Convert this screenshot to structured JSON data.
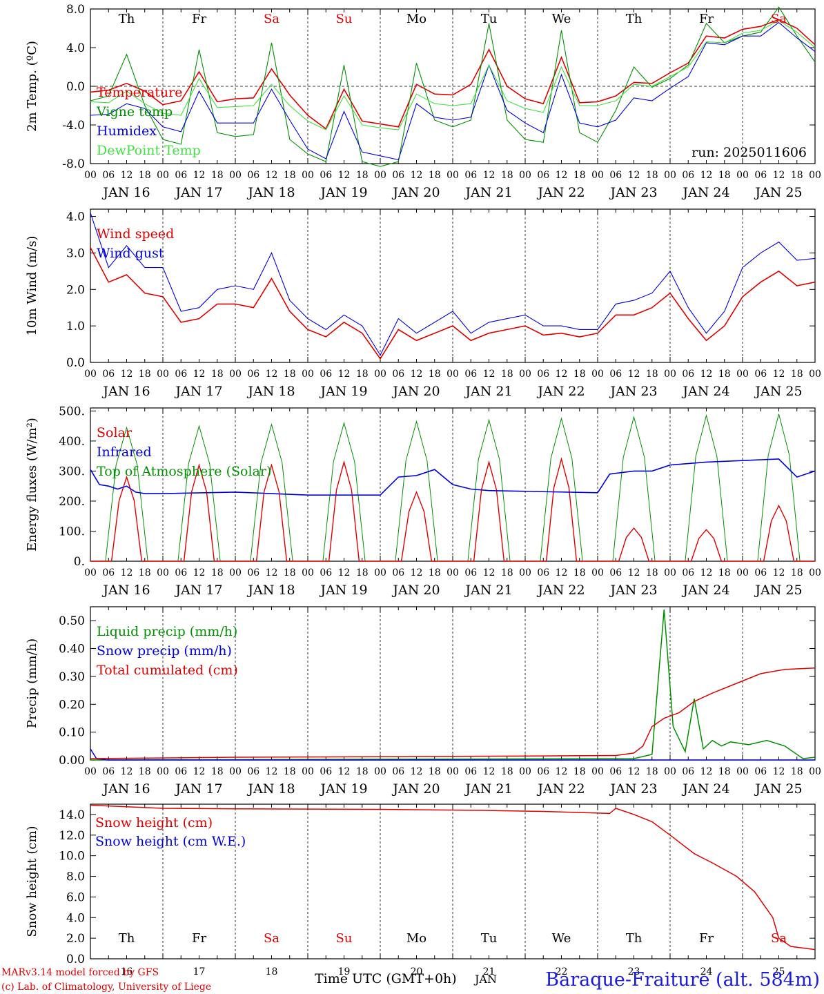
{
  "chart_data": [
    {
      "type": "line",
      "ylabel": "2m Temp. (ºC)",
      "ylim": [
        -8,
        8
      ],
      "yticks": [
        "-8.0",
        "-4.0",
        "0.0",
        "4.0",
        "8.0"
      ],
      "zero_line": true,
      "run_label": "run: 2025011606",
      "day_names": [
        "Th",
        "Fr",
        "Sa",
        "Su",
        "Mo",
        "Tu",
        "We",
        "Th",
        "Fr",
        "Sa"
      ],
      "x_hours": [
        0,
        6,
        12,
        18,
        24,
        30,
        36,
        42,
        48,
        54,
        60,
        66,
        72,
        78,
        84,
        90,
        96,
        102,
        108,
        114,
        120,
        126,
        132,
        138,
        144,
        150,
        156,
        162,
        168,
        174,
        180,
        186,
        192,
        198,
        204,
        210,
        216,
        222,
        228,
        234,
        240
      ],
      "series": [
        {
          "name": "Temperature",
          "color": "#e00000",
          "values": [
            -0.6,
            -0.4,
            0.3,
            -0.5,
            -1.9,
            -1.5,
            1.5,
            -1.6,
            -1.3,
            -1.2,
            1.8,
            -0.9,
            -3.0,
            -4.4,
            -0.3,
            -3.6,
            -3.9,
            -4.2,
            0.2,
            -0.8,
            -0.9,
            0.2,
            3.8,
            0.0,
            -1.3,
            -1.8,
            3.0,
            -1.7,
            -1.6,
            -1.0,
            0.4,
            0.3,
            1.4,
            2.4,
            5.2,
            5.0,
            5.9,
            6.2,
            6.9,
            6.0,
            4.3
          ]
        },
        {
          "name": "Vigne temp",
          "color": "#009000",
          "values": [
            -1.5,
            -1.0,
            3.3,
            -2.0,
            -5.5,
            -6.0,
            3.8,
            -4.8,
            -5.2,
            -5.0,
            4.5,
            -5.5,
            -7.0,
            -7.8,
            2.2,
            -7.8,
            -8.5,
            -7.8,
            2.4,
            -3.5,
            -4.2,
            -3.5,
            6.5,
            -3.5,
            -5.5,
            -5.8,
            5.8,
            -4.8,
            -5.8,
            -2.5,
            2.0,
            -0.1,
            0.8,
            2.2,
            6.5,
            4.5,
            5.2,
            5.6,
            8.2,
            5.2,
            2.5
          ]
        },
        {
          "name": "Humidex",
          "color": "#0000e0",
          "values": [
            -3.0,
            -2.9,
            -1.8,
            -2.3,
            -4.2,
            -4.7,
            -0.5,
            -3.8,
            -3.8,
            -3.8,
            -0.3,
            -3.5,
            -6.5,
            -7.5,
            -2.6,
            -6.8,
            -7.2,
            -7.6,
            -1.8,
            -3.2,
            -3.5,
            -3.2,
            2.2,
            -2.5,
            -3.8,
            -4.8,
            1.2,
            -3.8,
            -4.2,
            -3.5,
            -1.2,
            -1.5,
            -0.2,
            1.0,
            4.5,
            4.3,
            5.2,
            5.2,
            6.6,
            5.0,
            3.6
          ]
        },
        {
          "name": "DewPoint Temp",
          "color": "#40e040",
          "values": [
            -1.6,
            -1.7,
            -0.5,
            -1.8,
            -2.8,
            -3.0,
            0.8,
            -2.2,
            -2.1,
            -2.0,
            0.2,
            -2.0,
            -3.6,
            -4.5,
            -1.0,
            -4.0,
            -4.3,
            -4.5,
            -0.8,
            -1.8,
            -2.0,
            -1.8,
            2.2,
            -1.5,
            -2.3,
            -2.7,
            2.0,
            -2.0,
            -2.0,
            -1.5,
            0.2,
            0.0,
            1.0,
            2.0,
            4.6,
            4.5,
            5.5,
            5.8,
            6.8,
            5.6,
            4.0
          ]
        }
      ]
    },
    {
      "type": "line",
      "ylabel": "10m Wind (m/s)",
      "ylim": [
        0,
        4.2
      ],
      "yticks": [
        "0.0",
        "1.0",
        "2.0",
        "3.0",
        "4.0"
      ],
      "x_hours": [
        0,
        6,
        12,
        18,
        24,
        30,
        36,
        42,
        48,
        54,
        60,
        66,
        72,
        78,
        84,
        90,
        96,
        102,
        108,
        114,
        120,
        126,
        132,
        138,
        144,
        150,
        156,
        162,
        168,
        174,
        180,
        186,
        192,
        198,
        204,
        210,
        216,
        222,
        228,
        234,
        240
      ],
      "series": [
        {
          "name": "Wind speed",
          "color": "#e00000",
          "values": [
            3.15,
            2.2,
            2.4,
            1.9,
            1.8,
            1.1,
            1.2,
            1.6,
            1.6,
            1.5,
            2.3,
            1.4,
            0.9,
            0.7,
            1.1,
            0.8,
            0.1,
            0.9,
            0.6,
            0.8,
            1.0,
            0.6,
            0.8,
            0.9,
            1.0,
            0.75,
            0.8,
            0.7,
            0.8,
            1.3,
            1.3,
            1.5,
            1.9,
            1.2,
            0.6,
            1.0,
            1.8,
            2.2,
            2.5,
            2.1,
            2.2
          ]
        },
        {
          "name": "Wind gust",
          "color": "#0000e0",
          "values": [
            4.1,
            2.6,
            3.2,
            2.6,
            2.6,
            1.4,
            1.5,
            2.0,
            2.1,
            2.0,
            3.0,
            1.7,
            1.2,
            0.9,
            1.3,
            1.0,
            0.2,
            1.2,
            0.8,
            1.1,
            1.4,
            0.8,
            1.1,
            1.2,
            1.3,
            1.0,
            1.0,
            0.9,
            0.9,
            1.6,
            1.7,
            1.9,
            2.5,
            1.5,
            0.8,
            1.4,
            2.6,
            3.0,
            3.3,
            2.8,
            2.85
          ]
        }
      ]
    },
    {
      "type": "line",
      "ylabel": "Energy fluxes (W/m²)",
      "ylim": [
        0,
        510
      ],
      "yticks": [
        "0.",
        "100.",
        "200.",
        "300.",
        "400.",
        "500."
      ],
      "solar_noon_peaks": {
        "solar": [
          280,
          320,
          320,
          330,
          230,
          330,
          340,
          110,
          105,
          185
        ],
        "top_of_atmosphere": [
          445,
          450,
          455,
          460,
          465,
          470,
          475,
          480,
          485,
          490
        ]
      },
      "infrared": {
        "x_hours": [
          0,
          3,
          6,
          9,
          12,
          15,
          18,
          24,
          48,
          72,
          96,
          102,
          108,
          114,
          120,
          126,
          132,
          168,
          172,
          180,
          186,
          192,
          204,
          216,
          228,
          234,
          240
        ],
        "values": [
          305,
          255,
          250,
          240,
          250,
          230,
          225,
          225,
          230,
          220,
          220,
          280,
          285,
          305,
          255,
          240,
          235,
          228,
          290,
          300,
          300,
          320,
          330,
          335,
          340,
          280,
          300
        ]
      },
      "series": [
        {
          "name": "Solar",
          "color": "#e00000"
        },
        {
          "name": "Infrared",
          "color": "#0000e0"
        },
        {
          "name": "Top of Atmosphere (Solar)",
          "color": "#009000"
        }
      ]
    },
    {
      "type": "line",
      "ylabel": "Precip (mm/h)",
      "ylim": [
        0,
        0.55
      ],
      "yticks": [
        "0.00",
        "0.10",
        "0.20",
        "0.30",
        "0.40",
        "0.50"
      ],
      "series": [
        {
          "name": "Liquid precip (mm/h)",
          "color": "#009000",
          "x_hours": [
            0,
            180,
            186,
            190,
            193,
            197,
            200,
            203,
            206,
            209,
            212,
            218,
            224,
            230,
            236,
            240
          ],
          "values": [
            0,
            0.005,
            0.02,
            0.54,
            0.12,
            0.03,
            0.22,
            0.04,
            0.07,
            0.05,
            0.065,
            0.055,
            0.07,
            0.05,
            0.005,
            0.01
          ]
        },
        {
          "name": "Snow precip (mm/h)",
          "color": "#0000e0",
          "x_hours": [
            0,
            2,
            6,
            240
          ],
          "values": [
            0.04,
            0.005,
            0.0,
            0.0
          ]
        },
        {
          "name": "Total cumulated (cm)",
          "color": "#e00000",
          "x_hours": [
            0,
            48,
            96,
            144,
            174,
            180,
            183,
            186,
            190,
            195,
            200,
            206,
            214,
            222,
            230,
            240
          ],
          "values": [
            0.005,
            0.01,
            0.012,
            0.014,
            0.016,
            0.025,
            0.05,
            0.12,
            0.15,
            0.17,
            0.21,
            0.24,
            0.275,
            0.31,
            0.325,
            0.33
          ]
        }
      ]
    },
    {
      "type": "line",
      "ylabel": "Snow height (cm)",
      "ylim": [
        0,
        15
      ],
      "yticks": [
        "0.0",
        "2.0",
        "4.0",
        "6.0",
        "8.0",
        "10.0",
        "12.0",
        "14.0"
      ],
      "day_names": [
        "Th",
        "Fr",
        "Sa",
        "Su",
        "Mo",
        "Tu",
        "We",
        "Th",
        "Fr",
        "Sa"
      ],
      "day_numbers": [
        "16",
        "17",
        "18",
        "19",
        "20",
        "21",
        "22",
        "23",
        "24",
        "25"
      ],
      "series": [
        {
          "name": "Snow height (cm)",
          "color": "#e00000",
          "x_hours": [
            0,
            24,
            48,
            96,
            130,
            150,
            172,
            174,
            180,
            186,
            192,
            200,
            206,
            214,
            220,
            226,
            228,
            232,
            240
          ],
          "values": [
            14.9,
            14.6,
            14.55,
            14.5,
            14.4,
            14.3,
            14.1,
            14.6,
            14.0,
            13.3,
            12.0,
            10.2,
            9.3,
            8.0,
            6.5,
            4.0,
            2.0,
            1.2,
            0.9
          ]
        },
        {
          "name": "Snow height (cm W.E.)",
          "color": "#0000e0"
        }
      ]
    }
  ],
  "common": {
    "hour_labels": [
      "00",
      "06",
      "12",
      "18"
    ],
    "dates": [
      "JAN 16",
      "JAN 17",
      "JAN 18",
      "JAN 19",
      "JAN 20",
      "JAN 21",
      "JAN 22",
      "JAN 23",
      "JAN 24",
      "JAN 25"
    ],
    "weekend_color": "#e00000",
    "weekend_days": [
      "Sa",
      "Su"
    ]
  },
  "footer": {
    "model": "MARv3.14 model forced by GFS",
    "copyright": "(c) Lab. of Climatology, University of Liege",
    "xlabel": "Time UTC (GMT+0h)",
    "month": "JAN",
    "station": "Baraque-Fraiture (alt. 584m)"
  }
}
